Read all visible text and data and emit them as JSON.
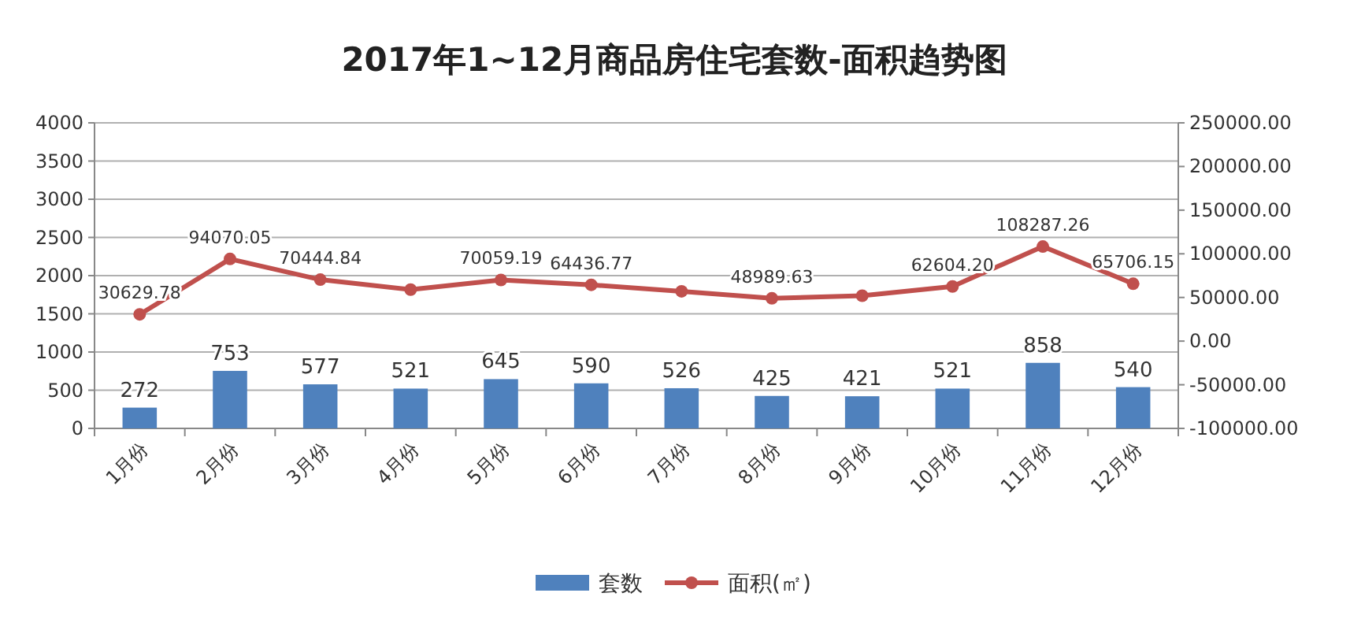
{
  "chart_data": {
    "type": "bar",
    "title": "2017年1~12月商品房住宅套数-面积趋势图",
    "categories": [
      "1月份",
      "2月份",
      "3月份",
      "4月份",
      "5月份",
      "6月份",
      "7月份",
      "8月份",
      "9月份",
      "10月份",
      "11月份",
      "12月份"
    ],
    "series": [
      {
        "name": "套数",
        "color": "#4f81bd",
        "values": [
          272,
          753,
          577,
          521,
          645,
          590,
          526,
          425,
          421,
          521,
          858,
          540
        ],
        "value_labels": [
          "272",
          "753",
          "577",
          "521",
          "645",
          "590",
          "526",
          "425",
          "421",
          "521",
          "858",
          "540"
        ]
      },
      {
        "name": "面积(㎡)",
        "type": "line",
        "axis": "y2",
        "color": "#c0504d",
        "marker": "circle",
        "values": [
          30629.78,
          94070.05,
          70444.84,
          59000,
          70059.19,
          64436.77,
          57000,
          48989.63,
          52000,
          62604.2,
          108287.26,
          65706.15
        ],
        "value_labels": [
          "30629.78",
          "94070.05",
          "70444.84",
          null,
          "70059.19",
          "64436.77",
          null,
          "48989.63",
          null,
          "62604.20",
          "108287.26",
          "65706.15"
        ]
      }
    ],
    "ylim": [
      0,
      4000
    ],
    "yticks": [
      0,
      500,
      1000,
      1500,
      2000,
      2500,
      3000,
      3500,
      4000
    ],
    "y2lim": [
      -100000,
      250000
    ],
    "y2ticks": [
      {
        "value": -100000,
        "label": "-100000.00"
      },
      {
        "value": -50000,
        "label": "-50000.00"
      },
      {
        "value": 0,
        "label": "0.00"
      },
      {
        "value": 50000,
        "label": "50000.00"
      },
      {
        "value": 100000,
        "label": "100000.00"
      },
      {
        "value": 150000,
        "label": "150000.00"
      },
      {
        "value": 200000,
        "label": "200000.00"
      },
      {
        "value": 250000,
        "label": "250000.00"
      }
    ],
    "grid": "y",
    "legend": "bottom"
  }
}
